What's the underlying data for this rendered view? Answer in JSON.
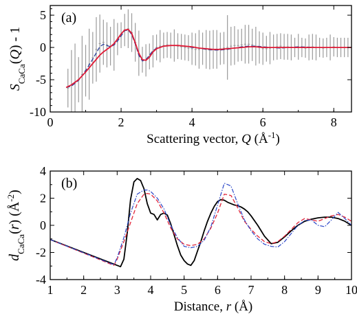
{
  "chart_data": [
    {
      "type": "line",
      "panel_label": "(a)",
      "xlabel_parts": [
        "Scattering vector, ",
        "Q",
        " (Å",
        "-1",
        ")"
      ],
      "ylabel_parts": [
        "S",
        "CaCa",
        "(",
        "Q",
        ") - 1"
      ],
      "xlim": [
        0,
        8.5
      ],
      "ylim": [
        -10,
        6.5
      ],
      "xticks": [
        0,
        2,
        4,
        6,
        8
      ],
      "xtick_labels": [
        "0",
        "2",
        "4",
        "6",
        "8"
      ],
      "yticks": [
        -10,
        -5,
        0,
        5
      ],
      "ytick_labels": [
        "-10",
        "-5",
        "0",
        "5"
      ],
      "series": [
        {
          "style": "data-with-errorbars",
          "color": "#9a9a9a",
          "x": [
            0.5,
            0.6,
            0.7,
            0.8,
            0.9,
            1.0,
            1.1,
            1.2,
            1.3,
            1.4,
            1.5,
            1.6,
            1.7,
            1.8,
            1.9,
            2.0,
            2.1,
            2.2,
            2.3,
            2.4,
            2.5,
            2.6,
            2.7,
            2.8,
            2.9,
            3.0,
            3.1,
            3.2,
            3.3,
            3.4,
            3.5,
            3.6,
            3.7,
            3.8,
            3.9,
            4.0,
            4.1,
            4.2,
            4.3,
            4.4,
            4.5,
            4.6,
            4.7,
            4.8,
            4.9,
            5.0,
            5.1,
            5.2,
            5.3,
            5.4,
            5.5,
            5.6,
            5.7,
            5.8,
            5.9,
            6.0,
            6.1,
            6.2,
            6.3,
            6.4,
            6.5,
            6.6,
            6.7,
            6.8,
            6.9,
            7.0,
            7.1,
            7.2,
            7.3,
            7.4,
            7.5,
            7.6,
            7.7,
            7.8,
            7.9,
            8.0,
            8.1,
            8.2,
            8.3,
            8.4
          ],
          "y": [
            -6.3,
            -5.9,
            -5.4,
            -5.0,
            -4.2,
            -3.6,
            -2.6,
            -1.6,
            -0.3,
            0.6,
            0.8,
            0.4,
            0.2,
            0.4,
            1.3,
            1.9,
            2.7,
            2.9,
            2.3,
            0.8,
            -0.9,
            -1.9,
            -2.0,
            -1.4,
            -0.6,
            0.0,
            0.2,
            0.3,
            0.4,
            0.3,
            0.3,
            0.2,
            0.1,
            0.0,
            -0.1,
            -0.2,
            -0.3,
            -0.3,
            -0.2,
            -0.3,
            -0.4,
            -0.3,
            -0.3,
            -0.2,
            -0.1,
            0.0,
            0.2,
            0.3,
            0.3,
            0.4,
            0.5,
            0.5,
            0.4,
            0.2,
            0.0,
            -0.2,
            -0.2,
            -0.1,
            0.0,
            0.1,
            0.2,
            0.1,
            0.1,
            0.0,
            0.0,
            0.1,
            0.0,
            -0.1,
            0.0,
            0.1,
            0.0,
            0.0,
            -0.1,
            0.0,
            0.0,
            0.1,
            0.0,
            0.0,
            0.0,
            0.0
          ],
          "err": [
            3.0,
            5.5,
            6.0,
            3.5,
            6.0,
            4.0,
            5.5,
            4.0,
            5.0,
            4.5,
            3.5,
            3.5,
            3.0,
            4.0,
            2.5,
            2.0,
            2.5,
            3.0,
            3.0,
            3.0,
            3.5,
            2.0,
            2.5,
            2.0,
            2.5,
            2.0,
            2.5,
            2.0,
            2.0,
            2.0,
            2.5,
            2.0,
            2.0,
            2.0,
            2.0,
            2.5,
            2.5,
            3.0,
            2.5,
            3.0,
            3.0,
            3.0,
            3.0,
            2.5,
            2.5,
            5.0,
            3.0,
            3.0,
            2.5,
            2.5,
            3.0,
            3.0,
            2.5,
            3.0,
            2.5,
            2.5,
            2.0,
            2.5,
            2.0,
            2.0,
            2.0,
            2.0,
            2.0,
            2.0,
            1.5,
            2.0,
            1.5,
            1.5,
            2.0,
            2.0,
            2.0,
            1.5,
            1.5,
            1.5,
            2.0,
            1.5,
            1.5,
            1.5,
            1.5,
            1.5
          ]
        },
        {
          "style": "dashed",
          "color": "#2a3f9a",
          "x": [
            0.45,
            0.6,
            0.8,
            1.0,
            1.2,
            1.4,
            1.5,
            1.6,
            1.7,
            1.8,
            1.9,
            2.0,
            2.1,
            2.2,
            2.3,
            2.4,
            2.5,
            2.6,
            2.7,
            2.8,
            2.9,
            3.0,
            3.2,
            3.4,
            3.6,
            3.8,
            4.0,
            4.2,
            4.4,
            4.6,
            4.8,
            5.0,
            5.2,
            5.4,
            5.6,
            5.8,
            6.0,
            6.2,
            6.5,
            7.0,
            7.5,
            8.0,
            8.5
          ],
          "y": [
            -6.2,
            -6.0,
            -5.1,
            -3.6,
            -1.8,
            0.1,
            0.5,
            0.3,
            0.1,
            0.4,
            1.0,
            1.8,
            2.6,
            2.7,
            2.0,
            0.5,
            -1.2,
            -2.1,
            -1.9,
            -1.2,
            -0.5,
            -0.1,
            0.2,
            0.3,
            0.3,
            0.2,
            0.0,
            -0.1,
            -0.3,
            -0.4,
            -0.4,
            -0.3,
            -0.1,
            0.1,
            0.2,
            0.2,
            0.1,
            0.0,
            -0.1,
            0.1,
            0.0,
            0.0,
            0.0
          ]
        },
        {
          "style": "solid",
          "color": "#e01a35",
          "x": [
            0.45,
            0.6,
            0.8,
            1.0,
            1.2,
            1.4,
            1.5,
            1.6,
            1.7,
            1.8,
            1.9,
            2.0,
            2.1,
            2.2,
            2.3,
            2.4,
            2.5,
            2.6,
            2.7,
            2.8,
            2.9,
            3.0,
            3.2,
            3.4,
            3.6,
            3.8,
            4.0,
            4.2,
            4.4,
            4.6,
            4.8,
            5.0,
            5.2,
            5.4,
            5.6,
            5.8,
            6.0,
            6.2,
            6.5,
            7.0,
            7.5,
            8.0,
            8.5
          ],
          "y": [
            -6.2,
            -5.8,
            -5.0,
            -3.8,
            -2.5,
            -1.2,
            -0.7,
            -0.3,
            0.1,
            0.6,
            1.3,
            2.1,
            2.7,
            2.8,
            2.2,
            0.7,
            -0.9,
            -1.9,
            -2.0,
            -1.5,
            -0.7,
            -0.2,
            0.2,
            0.3,
            0.3,
            0.2,
            0.1,
            -0.1,
            -0.2,
            -0.3,
            -0.3,
            -0.2,
            -0.1,
            0.0,
            0.1,
            0.1,
            0.0,
            0.0,
            0.0,
            0.0,
            0.0,
            0.0,
            0.0
          ]
        }
      ]
    },
    {
      "type": "line",
      "panel_label": "(b)",
      "xlabel_parts": [
        "Distance, ",
        "r",
        " (Å)"
      ],
      "ylabel_parts": [
        "d",
        "CaCa",
        "(",
        "r",
        ") (Å",
        "-2",
        ")"
      ],
      "xlim": [
        1,
        10
      ],
      "ylim": [
        -4,
        4
      ],
      "xticks": [
        1,
        2,
        3,
        4,
        5,
        6,
        7,
        8,
        9,
        10
      ],
      "xtick_labels": [
        "1",
        "2",
        "3",
        "4",
        "5",
        "6",
        "7",
        "8",
        "9",
        "10"
      ],
      "yticks": [
        -4,
        -2,
        0,
        2,
        4
      ],
      "ytick_labels": [
        "-4",
        "-2",
        "0",
        "2",
        "4"
      ],
      "series": [
        {
          "style": "solid",
          "color": "#000000",
          "x": [
            1.0,
            3.1,
            3.2,
            3.3,
            3.4,
            3.5,
            3.6,
            3.7,
            3.8,
            3.9,
            4.0,
            4.1,
            4.2,
            4.3,
            4.4,
            4.5,
            4.6,
            4.7,
            4.8,
            4.9,
            5.0,
            5.1,
            5.2,
            5.3,
            5.4,
            5.5,
            5.6,
            5.7,
            5.8,
            5.9,
            6.0,
            6.1,
            6.2,
            6.3,
            6.4,
            6.5,
            6.6,
            6.7,
            6.8,
            6.9,
            7.0,
            7.2,
            7.4,
            7.6,
            7.8,
            8.0,
            8.2,
            8.4,
            8.6,
            8.8,
            9.0,
            9.2,
            9.4,
            9.6,
            9.8,
            10.0
          ],
          "y": [
            -1.05,
            -3.05,
            -2.5,
            -0.6,
            1.9,
            3.2,
            3.45,
            3.3,
            2.7,
            1.6,
            0.9,
            0.8,
            0.4,
            0.8,
            0.9,
            0.75,
            0.1,
            -0.7,
            -1.5,
            -2.2,
            -2.6,
            -2.85,
            -2.95,
            -2.6,
            -1.9,
            -1.2,
            -0.4,
            0.3,
            0.9,
            1.4,
            1.75,
            1.9,
            1.85,
            1.7,
            1.6,
            1.5,
            1.45,
            1.35,
            1.2,
            1.0,
            0.7,
            0.0,
            -0.8,
            -1.35,
            -1.25,
            -0.85,
            -0.4,
            0.0,
            0.3,
            0.45,
            0.55,
            0.6,
            0.6,
            0.5,
            0.3,
            0.0
          ]
        },
        {
          "style": "dashed",
          "color": "#e0253a",
          "x": [
            1.0,
            2.9,
            3.0,
            3.2,
            3.4,
            3.6,
            3.8,
            3.9,
            4.0,
            4.2,
            4.4,
            4.6,
            4.8,
            5.0,
            5.2,
            5.4,
            5.6,
            5.8,
            6.0,
            6.2,
            6.4,
            6.6,
            6.8,
            7.0,
            7.2,
            7.4,
            7.6,
            7.8,
            8.0,
            8.2,
            8.4,
            8.6,
            8.8,
            9.0,
            9.2,
            9.4,
            9.6,
            9.8,
            10.0
          ],
          "y": [
            -1.05,
            -2.95,
            -2.5,
            -1.2,
            0.2,
            1.6,
            2.3,
            2.35,
            2.3,
            1.8,
            0.9,
            -0.2,
            -1.0,
            -1.4,
            -1.5,
            -1.4,
            -1.0,
            -0.2,
            0.9,
            2.3,
            2.2,
            1.3,
            0.3,
            -0.3,
            -0.8,
            -1.2,
            -1.35,
            -1.2,
            -0.8,
            -0.3,
            0.2,
            0.5,
            0.4,
            0.3,
            0.5,
            0.7,
            0.8,
            0.6,
            0.3
          ]
        },
        {
          "style": "dash-dot",
          "color": "#2a46c8",
          "x": [
            1.0,
            2.9,
            3.0,
            3.2,
            3.4,
            3.6,
            3.8,
            3.9,
            4.0,
            4.2,
            4.4,
            4.6,
            4.8,
            5.0,
            5.2,
            5.4,
            5.6,
            5.8,
            6.0,
            6.2,
            6.4,
            6.6,
            6.8,
            7.0,
            7.2,
            7.4,
            7.6,
            7.8,
            8.0,
            8.2,
            8.4,
            8.6,
            8.8,
            9.0,
            9.2,
            9.4,
            9.6,
            9.8,
            10.0
          ],
          "y": [
            -1.05,
            -2.9,
            -2.4,
            -0.9,
            0.9,
            2.3,
            2.6,
            2.6,
            2.5,
            2.0,
            1.2,
            0.0,
            -0.9,
            -1.55,
            -1.65,
            -1.55,
            -1.1,
            -0.1,
            1.5,
            3.1,
            2.9,
            1.6,
            0.4,
            -0.4,
            -1.0,
            -1.4,
            -1.55,
            -1.6,
            -1.2,
            -0.6,
            0.0,
            0.35,
            0.4,
            0.0,
            -0.1,
            0.4,
            0.95,
            0.5,
            0.0
          ]
        }
      ]
    }
  ]
}
